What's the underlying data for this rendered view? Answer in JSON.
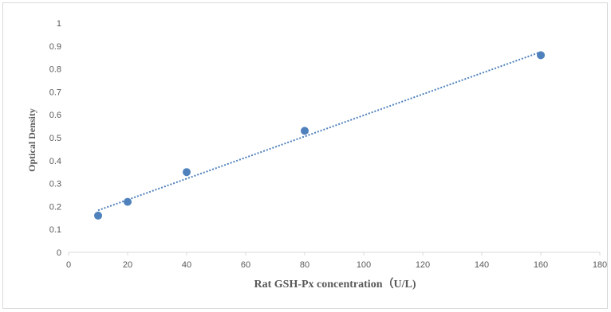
{
  "chart_data": {
    "type": "scatter",
    "xlabel": "Rat GSH-Px concentration（U/L)",
    "ylabel": "Optical Density",
    "xlim": [
      0,
      180
    ],
    "ylim": [
      0,
      1
    ],
    "x_ticks": [
      "0",
      "20",
      "40",
      "60",
      "80",
      "100",
      "120",
      "140",
      "160",
      "180"
    ],
    "y_ticks": [
      "0",
      "0.1",
      "0.2",
      "0.3",
      "0.4",
      "0.5",
      "0.6",
      "0.7",
      "0.8",
      "0.9",
      "1"
    ],
    "series": [
      {
        "x": [
          10,
          20,
          40,
          80,
          160
        ],
        "y": [
          0.16,
          0.22,
          0.35,
          0.53,
          0.86
        ],
        "marker_color": "#4f81bd"
      }
    ],
    "trendline": {
      "kind": "linear",
      "from": [
        10,
        0.183
      ],
      "to": [
        160,
        0.874
      ],
      "color": "#4f81bd",
      "style": "dotted"
    },
    "grid": false,
    "legend": "none"
  }
}
